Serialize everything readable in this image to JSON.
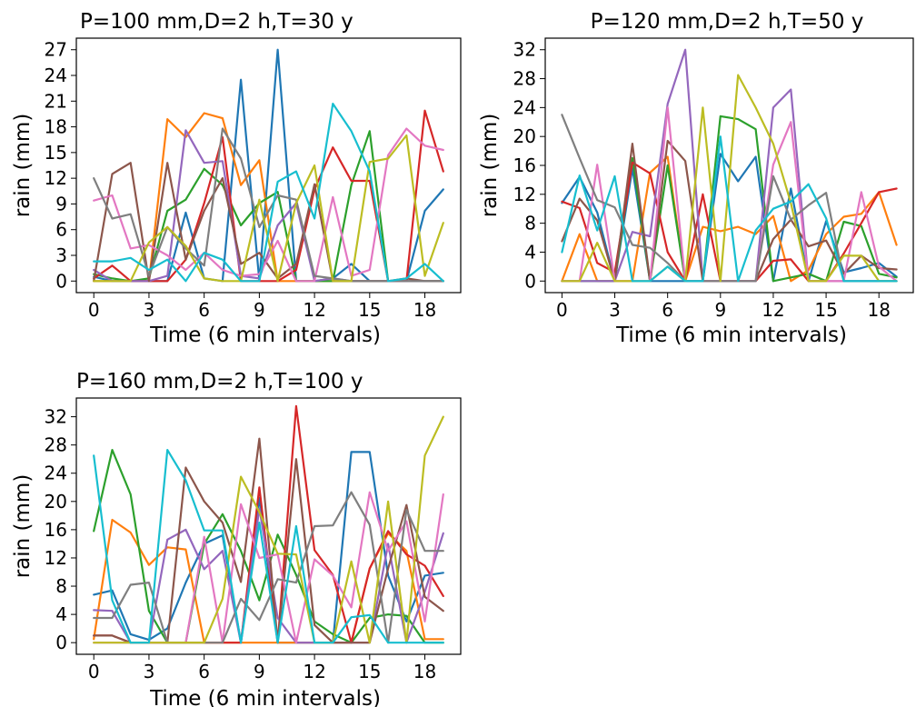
{
  "figure": {
    "palette": [
      "#1f77b4",
      "#ff7f0e",
      "#2ca02c",
      "#d62728",
      "#9467bd",
      "#8c564b",
      "#e377c2",
      "#7f7f7f",
      "#bcbd22",
      "#17becf"
    ]
  },
  "chart_data": [
    {
      "type": "line",
      "title": "P=100 mm,D=2 h,T=30 y",
      "xlabel": "Time (6 min intervals)",
      "ylabel": "rain (mm)",
      "x": [
        0,
        1,
        2,
        3,
        4,
        5,
        6,
        7,
        8,
        9,
        10,
        11,
        12,
        13,
        14,
        15,
        16,
        17,
        18,
        19
      ],
      "xticks": [
        "0",
        "3",
        "6",
        "9",
        "12",
        "15",
        "18"
      ],
      "xtick_values": [
        0,
        3,
        6,
        9,
        12,
        15,
        18
      ],
      "yticks": [
        "0",
        "3",
        "6",
        "9",
        "12",
        "15",
        "18",
        "21",
        "24",
        "27"
      ],
      "ytick_values": [
        0,
        3,
        6,
        9,
        12,
        15,
        18,
        21,
        24,
        27
      ],
      "xlim": [
        -0.95,
        19.95
      ],
      "ylim": [
        -1.35,
        28.35
      ],
      "grid": false,
      "series": [
        {
          "values": [
            0.5,
            0.0,
            0.0,
            0.0,
            0.0,
            8.0,
            0.3,
            0.0,
            23.5,
            0.0,
            27.0,
            0.0,
            0.0,
            0.3,
            2.0,
            0.0,
            0.0,
            0.0,
            8.2,
            10.7
          ]
        },
        {
          "values": [
            0.0,
            0.0,
            0.0,
            0.0,
            18.9,
            16.8,
            19.6,
            19.0,
            11.2,
            14.1,
            0.0,
            0.0,
            0.0,
            0.0,
            0.0,
            0.0,
            0.0,
            0.0,
            0.0,
            0.0
          ]
        },
        {
          "values": [
            0.8,
            0.3,
            0.0,
            0.3,
            8.2,
            9.5,
            13.1,
            11.2,
            6.5,
            9.1,
            10.4,
            0.0,
            0.0,
            0.0,
            11.2,
            17.5,
            0.0,
            0.0,
            0.0,
            0.0
          ]
        },
        {
          "values": [
            0.3,
            1.8,
            0.0,
            0.0,
            0.0,
            2.5,
            9.1,
            16.8,
            0.0,
            0.0,
            0.0,
            1.3,
            10.7,
            15.6,
            11.7,
            11.7,
            0.0,
            0.0,
            19.9,
            12.8
          ]
        },
        {
          "values": [
            1.3,
            0.0,
            0.0,
            0.0,
            0.6,
            17.6,
            13.8,
            14.0,
            0.6,
            0.3,
            6.5,
            9.1,
            0.0,
            0.3,
            0.0,
            0.0,
            0.0,
            0.0,
            0.0,
            0.0
          ]
        },
        {
          "values": [
            0.0,
            12.5,
            13.8,
            0.0,
            13.8,
            2.5,
            8.2,
            12.0,
            2.0,
            3.3,
            0.3,
            2.0,
            11.3,
            0.0,
            0.0,
            0.0,
            0.0,
            0.3,
            0.0,
            0.0
          ]
        },
        {
          "values": [
            9.4,
            10.0,
            3.8,
            4.2,
            3.0,
            1.3,
            3.3,
            1.3,
            0.6,
            0.8,
            4.7,
            0.0,
            0.0,
            9.8,
            0.6,
            1.3,
            14.7,
            17.8,
            15.8,
            15.3
          ]
        },
        {
          "values": [
            12.0,
            7.3,
            7.8,
            0.6,
            6.3,
            3.8,
            1.8,
            17.8,
            14.3,
            6.3,
            10.0,
            9.5,
            0.6,
            0.3,
            0.0,
            0.0,
            0.0,
            0.0,
            0.0,
            0.0
          ]
        },
        {
          "values": [
            0.0,
            0.0,
            0.0,
            4.5,
            6.3,
            4.1,
            0.3,
            0.0,
            0.0,
            9.5,
            0.0,
            9.1,
            13.5,
            0.0,
            0.0,
            13.9,
            14.3,
            17.0,
            0.6,
            6.8
          ]
        },
        {
          "values": [
            2.3,
            2.3,
            2.7,
            1.3,
            2.5,
            0.0,
            3.3,
            2.5,
            0.0,
            0.0,
            11.6,
            12.8,
            7.3,
            20.7,
            17.5,
            12.8,
            0.0,
            0.3,
            2.0,
            0.0
          ]
        }
      ]
    },
    {
      "type": "line",
      "title": "P=120 mm,D=2 h,T=50 y",
      "xlabel": "Time (6 min intervals)",
      "ylabel": "rain (mm)",
      "x": [
        0,
        1,
        2,
        3,
        4,
        5,
        6,
        7,
        8,
        9,
        10,
        11,
        12,
        13,
        14,
        15,
        16,
        17,
        18,
        19
      ],
      "xticks": [
        "0",
        "3",
        "6",
        "9",
        "12",
        "15",
        "18"
      ],
      "xtick_values": [
        0,
        3,
        6,
        9,
        12,
        15,
        18
      ],
      "yticks": [
        "0",
        "4",
        "8",
        "12",
        "16",
        "20",
        "24",
        "28",
        "32"
      ],
      "ytick_values": [
        0,
        4,
        8,
        12,
        16,
        20,
        24,
        28,
        32
      ],
      "xlim": [
        -0.95,
        19.95
      ],
      "ylim": [
        -1.6,
        33.6
      ],
      "grid": false,
      "series": [
        {
          "values": [
            10.8,
            14.4,
            9.5,
            0.0,
            15.6,
            0.0,
            0.0,
            0.0,
            0.0,
            17.6,
            13.8,
            17.2,
            0.0,
            12.8,
            0.0,
            8.3,
            1.2,
            1.8,
            2.5,
            0.6
          ]
        },
        {
          "values": [
            0.0,
            6.5,
            0.0,
            0.0,
            0.0,
            15.0,
            17.2,
            0.0,
            7.5,
            6.9,
            7.5,
            6.5,
            9.0,
            0.0,
            1.5,
            6.5,
            8.9,
            9.3,
            12.3,
            5.0
          ]
        },
        {
          "values": [
            0.0,
            0.0,
            0.0,
            0.0,
            17.0,
            0.0,
            16.0,
            0.0,
            0.0,
            22.8,
            22.4,
            21.0,
            0.0,
            0.5,
            1.0,
            0.0,
            8.2,
            7.6,
            1.0,
            0.5
          ]
        },
        {
          "values": [
            11.0,
            10.1,
            2.5,
            1.2,
            16.4,
            14.9,
            4.0,
            0.0,
            12.0,
            0.0,
            0.0,
            0.0,
            2.8,
            3.0,
            0.0,
            0.0,
            3.8,
            8.0,
            12.3,
            12.8
          ]
        },
        {
          "values": [
            0.0,
            0.0,
            0.0,
            0.0,
            6.8,
            6.2,
            24.5,
            32.0,
            0.0,
            0.0,
            0.0,
            0.0,
            24.0,
            26.5,
            0.0,
            0.0,
            0.0,
            0.0,
            0.0,
            0.0
          ]
        },
        {
          "values": [
            5.5,
            11.4,
            8.4,
            0.0,
            19.0,
            0.0,
            19.4,
            16.6,
            0.0,
            0.0,
            0.0,
            0.0,
            5.8,
            8.5,
            4.8,
            5.6,
            1.0,
            3.5,
            1.8,
            1.6
          ]
        },
        {
          "values": [
            0.0,
            0.0,
            16.1,
            0.0,
            0.0,
            0.0,
            24.0,
            0.0,
            0.0,
            0.0,
            0.0,
            0.0,
            16.1,
            22.0,
            0.0,
            0.0,
            0.0,
            12.3,
            2.0,
            0.0
          ]
        },
        {
          "values": [
            23.0,
            17.0,
            11.2,
            10.2,
            5.0,
            4.6,
            2.5,
            0.0,
            0.0,
            0.0,
            0.0,
            0.0,
            14.5,
            8.5,
            10.5,
            12.2,
            0.0,
            0.0,
            0.0,
            0.0
          ]
        },
        {
          "values": [
            0.0,
            0.0,
            5.3,
            0.0,
            0.0,
            0.0,
            2.0,
            0.0,
            24.0,
            0.0,
            28.5,
            24.0,
            19.0,
            10.8,
            0.0,
            0.0,
            3.5,
            3.5,
            0.0,
            0.0
          ]
        },
        {
          "values": [
            4.0,
            14.6,
            7.0,
            14.5,
            0.0,
            0.0,
            2.0,
            0.0,
            0.0,
            20.0,
            0.0,
            7.0,
            10.0,
            11.0,
            13.4,
            8.7,
            0.0,
            0.0,
            0.0,
            0.0
          ]
        }
      ]
    },
    {
      "type": "line",
      "title": "P=160 mm,D=2 h,T=100 y",
      "xlabel": "Time (6 min intervals)",
      "ylabel": "rain (mm)",
      "x": [
        0,
        1,
        2,
        3,
        4,
        5,
        6,
        7,
        8,
        9,
        10,
        11,
        12,
        13,
        14,
        15,
        16,
        17,
        18,
        19
      ],
      "xticks": [
        "0",
        "3",
        "6",
        "9",
        "12",
        "15",
        "18"
      ],
      "xtick_values": [
        0,
        3,
        6,
        9,
        12,
        15,
        18
      ],
      "yticks": [
        "0",
        "4",
        "8",
        "12",
        "16",
        "20",
        "24",
        "28",
        "32"
      ],
      "ytick_values": [
        0,
        4,
        8,
        12,
        16,
        20,
        24,
        28,
        32
      ],
      "xlim": [
        -0.95,
        19.95
      ],
      "ylim": [
        -1.65,
        34.65
      ],
      "grid": false,
      "series": [
        {
          "values": [
            6.8,
            7.4,
            1.2,
            0.4,
            2.0,
            8.5,
            14.0,
            15.2,
            0.0,
            20.5,
            0.0,
            0.0,
            0.0,
            0.0,
            27.0,
            27.0,
            9.5,
            3.0,
            9.5,
            9.9
          ]
        },
        {
          "values": [
            0.5,
            17.4,
            15.6,
            11.0,
            13.5,
            13.2,
            0.0,
            0.0,
            0.0,
            0.0,
            0.0,
            0.0,
            0.0,
            0.0,
            0.0,
            10.5,
            15.5,
            13.0,
            0.5,
            0.5
          ]
        },
        {
          "values": [
            15.8,
            27.3,
            21.0,
            4.5,
            0.0,
            0.0,
            14.0,
            18.2,
            13.0,
            6.0,
            15.3,
            9.6,
            3.0,
            1.2,
            0.0,
            3.5,
            4.0,
            3.8,
            0.0,
            0.0
          ]
        },
        {
          "values": [
            1.0,
            1.0,
            0.0,
            0.0,
            0.0,
            0.0,
            0.0,
            0.0,
            0.0,
            22.0,
            0.0,
            33.5,
            13.1,
            9.6,
            0.0,
            10.5,
            15.8,
            12.5,
            10.9,
            6.6
          ]
        },
        {
          "values": [
            4.6,
            4.5,
            0.0,
            0.0,
            14.6,
            16.0,
            10.4,
            13.0,
            0.0,
            19.0,
            3.5,
            0.0,
            0.0,
            0.0,
            0.0,
            0.0,
            14.0,
            0.0,
            7.2,
            15.5
          ]
        },
        {
          "values": [
            1.0,
            1.0,
            0.0,
            0.0,
            0.0,
            24.8,
            20.0,
            17.0,
            8.6,
            28.9,
            0.0,
            26.0,
            2.5,
            0.0,
            0.0,
            0.0,
            10.5,
            19.5,
            6.5,
            4.5
          ]
        },
        {
          "values": [
            0.0,
            0.0,
            0.0,
            0.0,
            0.0,
            0.0,
            15.0,
            0.0,
            19.6,
            12.0,
            12.5,
            0.0,
            11.8,
            9.5,
            5.0,
            21.3,
            13.0,
            17.2,
            3.0,
            21.0
          ]
        },
        {
          "values": [
            3.5,
            3.5,
            8.2,
            8.5,
            0.0,
            0.0,
            0.0,
            0.0,
            6.2,
            3.2,
            9.0,
            8.5,
            16.5,
            16.6,
            21.3,
            16.7,
            0.0,
            18.8,
            13.0,
            13.0
          ]
        },
        {
          "values": [
            0.0,
            0.0,
            0.0,
            0.0,
            0.0,
            0.0,
            0.0,
            6.2,
            23.5,
            18.5,
            12.6,
            12.5,
            0.0,
            0.0,
            11.5,
            0.0,
            20.0,
            0.0,
            26.5,
            32.0
          ]
        },
        {
          "values": [
            26.5,
            6.0,
            0.0,
            0.0,
            27.3,
            23.0,
            15.9,
            15.9,
            0.0,
            17.0,
            0.0,
            16.5,
            0.0,
            0.0,
            3.6,
            3.9,
            0.0,
            0.0,
            0.0,
            0.0
          ]
        }
      ]
    }
  ]
}
